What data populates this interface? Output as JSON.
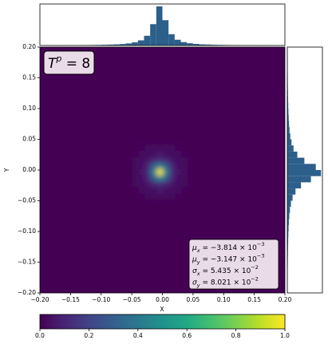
{
  "chart_data": [
    {
      "type": "heatmap",
      "x_label": "X",
      "y_label": "Y",
      "xlim": [
        -0.2,
        0.2
      ],
      "ylim": [
        -0.2,
        0.2
      ],
      "xticks": [
        {
          "value": -0.2,
          "label": "−0.20"
        },
        {
          "value": -0.15,
          "label": "−0.15"
        },
        {
          "value": -0.1,
          "label": "−0.10"
        },
        {
          "value": -0.05,
          "label": "−0.05"
        },
        {
          "value": 0,
          "label": "0.00"
        },
        {
          "value": 0.05,
          "label": "0.05"
        },
        {
          "value": 0.1,
          "label": "0.10"
        },
        {
          "value": 0.15,
          "label": "0.15"
        },
        {
          "value": 0.2,
          "label": "0.20"
        }
      ],
      "yticks": [
        {
          "value": -0.2,
          "label": "−0.20"
        },
        {
          "value": -0.15,
          "label": "−0.15"
        },
        {
          "value": -0.1,
          "label": "−0.10"
        },
        {
          "value": -0.05,
          "label": "−0.05"
        },
        {
          "value": 0,
          "label": "0.00"
        },
        {
          "value": 0.05,
          "label": "0.05"
        },
        {
          "value": 0.1,
          "label": "0.10"
        },
        {
          "value": 0.15,
          "label": "0.15"
        },
        {
          "value": 0.2,
          "label": "0.20"
        }
      ],
      "x": [
        -0.044,
        -0.034,
        -0.024,
        -0.014,
        -0.004,
        0.006,
        0.016,
        0.026,
        0.036
      ],
      "y": [
        -0.043,
        -0.033,
        -0.023,
        -0.013,
        -0.003,
        0.007,
        0.017,
        0.027,
        0.037
      ],
      "z": [
        [
          0.01,
          0.013,
          0.017,
          0.022,
          0.025,
          0.022,
          0.017,
          0.013,
          0.01
        ],
        [
          0.013,
          0.02,
          0.035,
          0.045,
          0.05,
          0.045,
          0.035,
          0.02,
          0.013
        ],
        [
          0.017,
          0.035,
          0.06,
          0.1,
          0.12,
          0.1,
          0.06,
          0.035,
          0.017
        ],
        [
          0.022,
          0.045,
          0.1,
          0.3,
          0.45,
          0.3,
          0.1,
          0.045,
          0.022
        ],
        [
          0.025,
          0.05,
          0.12,
          0.45,
          1.0,
          0.45,
          0.12,
          0.05,
          0.025
        ],
        [
          0.022,
          0.045,
          0.1,
          0.3,
          0.45,
          0.3,
          0.1,
          0.045,
          0.022
        ],
        [
          0.017,
          0.035,
          0.06,
          0.1,
          0.12,
          0.1,
          0.06,
          0.035,
          0.017
        ],
        [
          0.013,
          0.02,
          0.035,
          0.045,
          0.05,
          0.045,
          0.035,
          0.02,
          0.013
        ],
        [
          0.01,
          0.013,
          0.017,
          0.022,
          0.025,
          0.022,
          0.017,
          0.013,
          0.01
        ]
      ],
      "colormap": "viridis",
      "clim": [
        0,
        1
      ],
      "cticks": [
        {
          "value": 0,
          "label": "0.0"
        },
        {
          "value": 0.2,
          "label": "0.2"
        },
        {
          "value": 0.4,
          "label": "0.4"
        },
        {
          "value": 0.6,
          "label": "0.6"
        },
        {
          "value": 0.8,
          "label": "0.8"
        },
        {
          "value": 1,
          "label": "1.0"
        }
      ],
      "annotation": [
        "T",
        "p",
        " = 8"
      ],
      "stats": [
        [
          "μ",
          "x",
          " = −3.814 × 10",
          "−3"
        ],
        [
          "μ",
          "y",
          " = −3.147 × 10",
          "−3"
        ],
        [
          "σ",
          "x",
          " = 5.435 × 10",
          "−2"
        ],
        [
          "σ",
          "y",
          " = 8.021 × 10",
          "−2"
        ]
      ]
    },
    {
      "type": "histogram",
      "orientation": "vertical",
      "color": "#2d5f8b",
      "bins": [
        -0.2,
        -0.19,
        -0.18,
        -0.17,
        -0.16,
        -0.15,
        -0.14,
        -0.13,
        -0.12,
        -0.11,
        -0.1,
        -0.09,
        -0.08,
        -0.07,
        -0.06,
        -0.05,
        -0.04,
        -0.03,
        -0.02,
        -0.01,
        0,
        0.01,
        0.02,
        0.03,
        0.04,
        0.05,
        0.06,
        0.07,
        0.08,
        0.09,
        0.1,
        0.11,
        0.12,
        0.13,
        0.14,
        0.15,
        0.16,
        0.17,
        0.18,
        0.19,
        0.2
      ],
      "values": [
        0.39,
        0.44,
        0.49,
        0.55,
        0.63,
        0.72,
        0.83,
        0.97,
        1.15,
        1.39,
        1.71,
        2.15,
        2.8,
        3.7,
        5.2,
        7.9,
        13,
        24.6,
        54,
        99,
        64,
        28.6,
        14.6,
        8.6,
        5.7,
        4.0,
        2.9,
        2.3,
        1.8,
        1.45,
        1.2,
        1.0,
        0.86,
        0.74,
        0.64,
        0.57,
        0.5,
        0.45,
        0.4,
        0.36
      ],
      "ylim": [
        0,
        105
      ]
    },
    {
      "type": "histogram",
      "orientation": "horizontal",
      "color": "#2d5f8b",
      "bins": [
        -0.2,
        -0.19,
        -0.18,
        -0.17,
        -0.16,
        -0.15,
        -0.14,
        -0.13,
        -0.12,
        -0.11,
        -0.1,
        -0.09,
        -0.08,
        -0.07,
        -0.06,
        -0.05,
        -0.04,
        -0.03,
        -0.02,
        -0.01,
        0,
        0.01,
        0.02,
        0.03,
        0.04,
        0.05,
        0.06,
        0.07,
        0.08,
        0.09,
        0.1,
        0.11,
        0.12,
        0.13,
        0.14,
        0.15,
        0.16,
        0.17,
        0.18,
        0.19,
        0.2
      ],
      "values": [
        0.61,
        0.68,
        0.76,
        0.85,
        0.97,
        1.11,
        1.28,
        1.49,
        1.76,
        2.11,
        2.58,
        3.21,
        4.12,
        5.43,
        7.49,
        10.9,
        16.8,
        28.1,
        48.5,
        69.1,
        58.4,
        35,
        20.5,
        12.8,
        8.6,
        6.14,
        4.58,
        3.54,
        2.81,
        2.29,
        1.89,
        1.59,
        1.36,
        1.17,
        1.02,
        0.9,
        0.79,
        0.71,
        0.64,
        0.57
      ],
      "xlim": [
        0,
        72
      ]
    }
  ]
}
